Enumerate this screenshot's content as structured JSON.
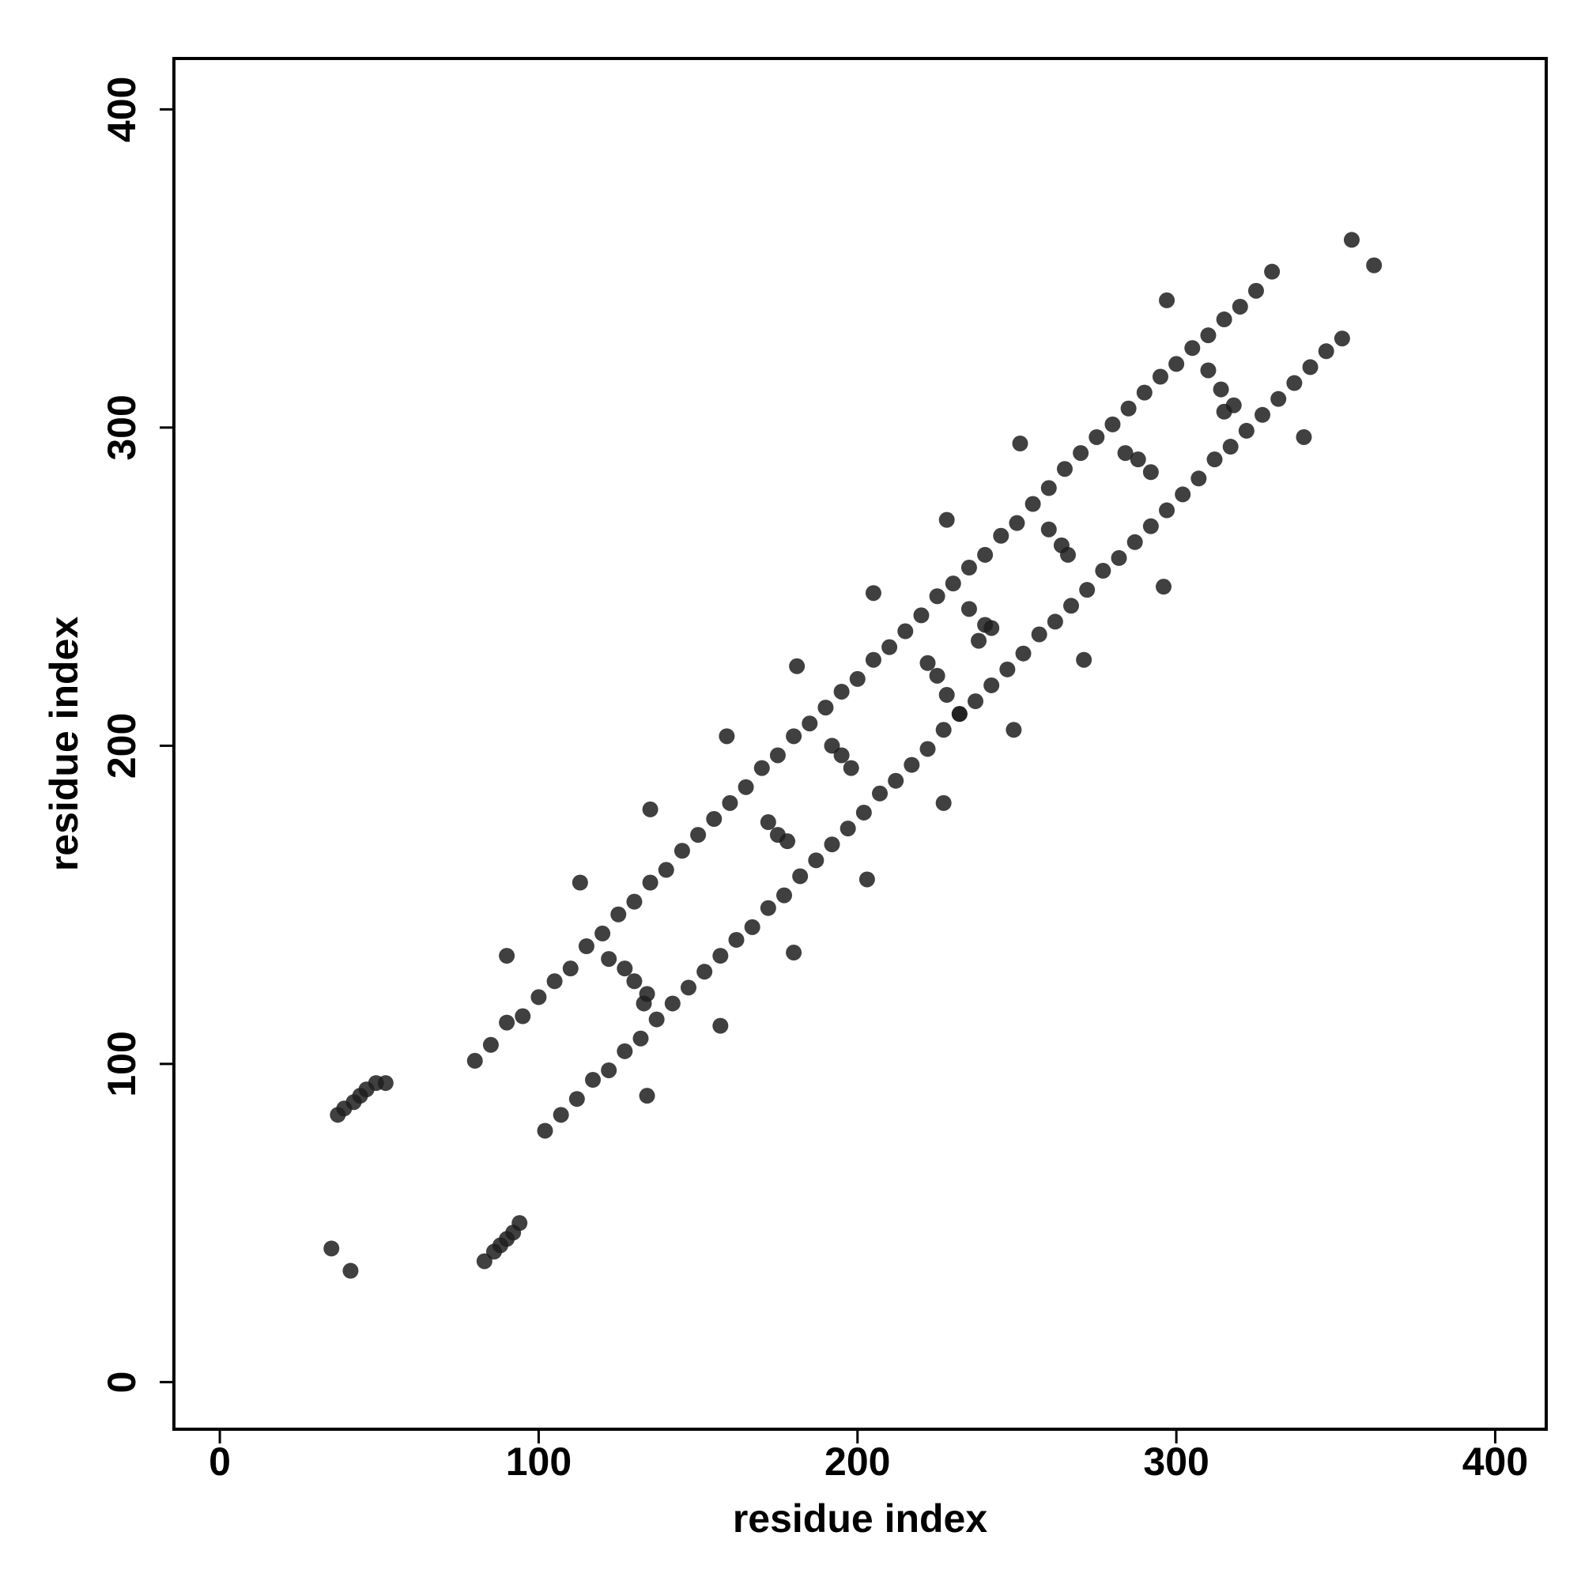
{
  "chart_data": {
    "type": "scatter",
    "x_label": "residue index",
    "y_label": "residue index",
    "color": "#1e1e1e",
    "xlim": [
      -14.4,
      416
    ],
    "ylim": [
      -14.8,
      416
    ],
    "xticks": [
      0,
      100,
      200,
      300,
      400
    ],
    "yticks": [
      0,
      100,
      200,
      300,
      400
    ],
    "x": [
      80,
      85,
      90,
      95,
      100,
      105,
      110,
      115,
      120,
      125,
      130,
      135,
      140,
      145,
      150,
      155,
      160,
      165,
      170,
      175,
      180,
      185,
      190,
      195,
      200,
      205,
      210,
      215,
      220,
      225,
      230,
      235,
      240,
      245,
      250,
      255,
      260,
      265,
      270,
      275,
      280,
      285,
      290,
      295,
      300,
      305,
      310,
      315,
      320,
      325,
      330,
      102,
      107,
      112,
      117,
      122,
      127,
      132,
      137,
      142,
      147,
      152,
      157,
      162,
      167,
      172,
      177,
      182,
      187,
      192,
      197,
      202,
      207,
      212,
      217,
      222,
      227,
      232,
      237,
      242,
      247,
      252,
      257,
      262,
      267,
      272,
      277,
      282,
      287,
      292,
      297,
      302,
      307,
      312,
      317,
      322,
      327,
      332,
      337,
      342,
      347,
      352,
      122,
      127,
      130,
      134,
      133,
      172,
      175,
      178,
      192,
      195,
      198,
      222,
      225,
      228,
      232,
      235,
      238,
      240,
      242,
      260,
      264,
      266,
      284,
      288,
      292,
      310,
      314,
      318,
      315,
      37,
      39,
      42,
      44,
      46,
      49,
      52,
      83,
      86,
      88,
      90,
      92,
      94,
      35,
      41,
      90,
      113,
      134,
      135,
      157,
      159,
      181,
      180,
      203,
      205,
      227,
      228,
      249,
      251,
      271,
      297,
      296,
      340,
      355,
      362
    ],
    "y": [
      101,
      106,
      113,
      115,
      121,
      126,
      130,
      137,
      141,
      147,
      151,
      157,
      161,
      167,
      172,
      177,
      182,
      187,
      193,
      197,
      203,
      207,
      212,
      217,
      221,
      227,
      231,
      236,
      241,
      247,
      251,
      256,
      260,
      266,
      270,
      276,
      281,
      287,
      292,
      297,
      301,
      306,
      311,
      316,
      320,
      325,
      329,
      334,
      338,
      343,
      349,
      79,
      84,
      89,
      95,
      98,
      104,
      108,
      114,
      119,
      124,
      129,
      134,
      139,
      143,
      149,
      153,
      159,
      164,
      169,
      174,
      179,
      185,
      189,
      194,
      199,
      205,
      210,
      214,
      219,
      224,
      229,
      235,
      239,
      244,
      249,
      255,
      259,
      264,
      269,
      274,
      279,
      284,
      290,
      294,
      299,
      304,
      309,
      314,
      319,
      324,
      328,
      133,
      130,
      126,
      122,
      119,
      176,
      172,
      170,
      200,
      197,
      193,
      226,
      222,
      216,
      210,
      243,
      233,
      238,
      237,
      268,
      263,
      260,
      292,
      290,
      286,
      318,
      312,
      307,
      305,
      84,
      86,
      88,
      90,
      92,
      94,
      94,
      38,
      41,
      43,
      45,
      47,
      50,
      42,
      35,
      134,
      157,
      90,
      180,
      112,
      203,
      225,
      135,
      158,
      248,
      182,
      271,
      205,
      295,
      227,
      340,
      250,
      297,
      359,
      351
    ]
  }
}
